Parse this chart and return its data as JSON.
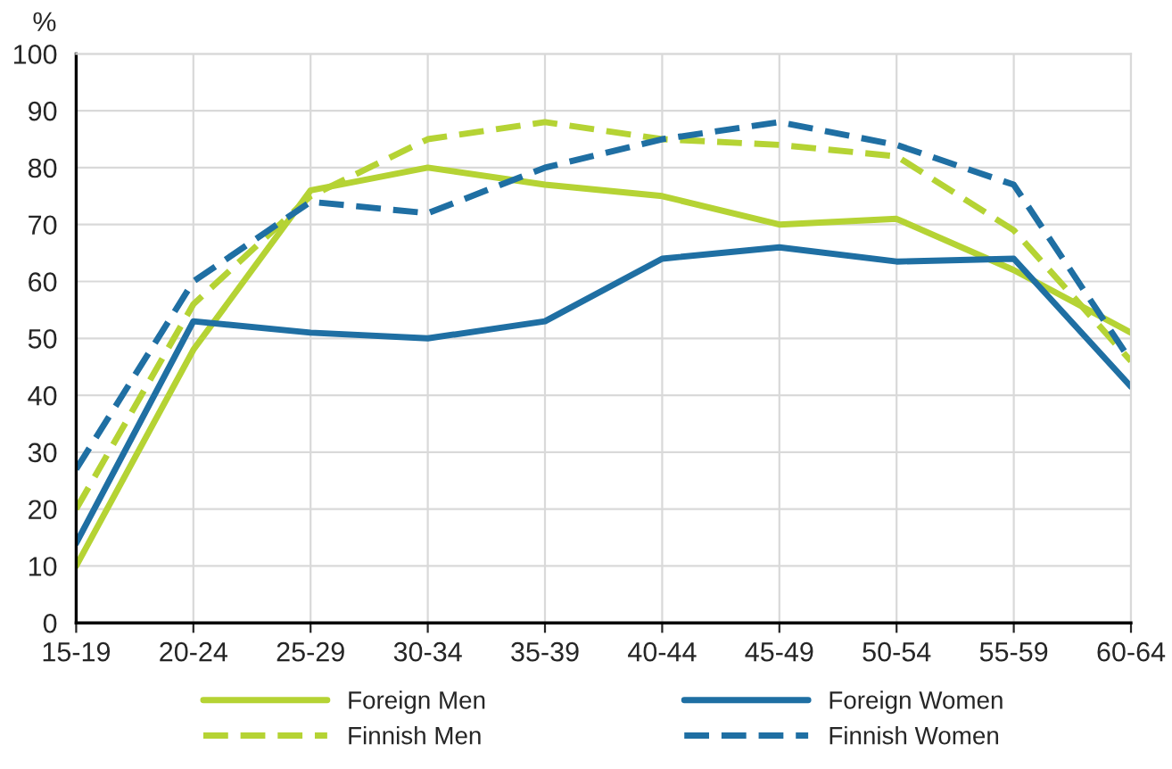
{
  "chart_data": {
    "type": "line",
    "ylabel": "%",
    "categories": [
      "15-19",
      "20-24",
      "25-29",
      "30-34",
      "35-39",
      "40-44",
      "45-49",
      "50-54",
      "55-59",
      "60-64"
    ],
    "series": [
      {
        "name": "Foreign Men",
        "color": "#b5d334",
        "line_style": "solid",
        "values": [
          10,
          48,
          76,
          80,
          77,
          75,
          70,
          71,
          62,
          51
        ]
      },
      {
        "name": "Foreign Women",
        "color": "#1f6fa3",
        "line_style": "solid",
        "values": [
          14,
          53,
          51,
          50,
          53,
          64,
          66,
          63.5,
          64,
          41.5
        ]
      },
      {
        "name": "Finnish Men",
        "color": "#b5d334",
        "line_style": "dashed",
        "values": [
          20,
          56,
          75,
          85,
          88,
          85,
          84,
          82,
          69,
          46
        ]
      },
      {
        "name": "Finnish Women",
        "color": "#1f6fa3",
        "line_style": "dashed",
        "values": [
          27,
          60,
          74,
          72,
          80,
          85,
          88,
          84,
          77,
          46
        ]
      }
    ],
    "ylim": [
      0,
      100
    ],
    "yticks": [
      0,
      10,
      20,
      30,
      40,
      50,
      60,
      70,
      80,
      90,
      100
    ],
    "grid": true,
    "legend": "bottom",
    "marker": "none"
  }
}
